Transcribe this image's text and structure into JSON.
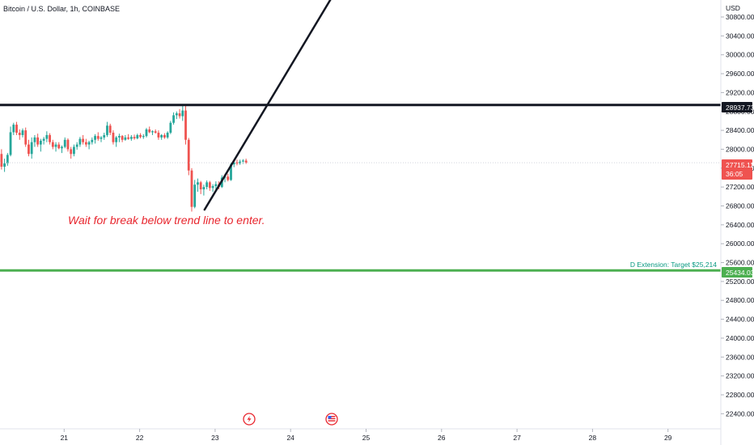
{
  "header": {
    "symbol_title": "Bitcoin / U.S. Dollar, 1h, COINBASE"
  },
  "price_axis": {
    "currency": "USD",
    "tick_labels": [
      "30800.00",
      "30400.00",
      "30000.00",
      "29600.00",
      "29200.00",
      "28800.00",
      "28400.00",
      "28000.00",
      "27600.00",
      "27200.00",
      "26800.00",
      "26400.00",
      "26000.00",
      "25600.00",
      "25200.00",
      "24800.00",
      "24400.00",
      "24000.00",
      "23600.00",
      "23200.00",
      "22800.00",
      "22400.00"
    ]
  },
  "time_axis": {
    "tick_labels": [
      "21",
      "22",
      "23",
      "24",
      "25",
      "26",
      "27",
      "28",
      "29"
    ]
  },
  "badges": {
    "resistance_price": "28937.73",
    "last_price": "27715.11",
    "countdown": "36:05",
    "support_price": "25434.03"
  },
  "annotations": {
    "entry_note": "Wait for break below trend line to enter.",
    "extension_note": "D Extension: Target $25,214"
  },
  "colors": {
    "up": "#26a69a",
    "down": "#ef5350",
    "resistance_line": "#131722",
    "support_line": "#4caf50",
    "trend_line": "#131722",
    "note": "#e8262e",
    "extension_text": "#089981",
    "last_price_badge": "#ef5350"
  },
  "icons": [
    "lightning-event-icon",
    "us-flag-event-icon"
  ],
  "chart_data": {
    "type": "candlestick",
    "title": "Bitcoin / U.S. Dollar, 1h, COINBASE",
    "ylabel": "USD",
    "ylim": [
      22080,
      31160
    ],
    "xlim": [
      20.15,
      29.7
    ],
    "grid": false,
    "horizontal_lines": [
      {
        "price": 28937.73,
        "style": "solid-thick"
      },
      {
        "price": 25434.03,
        "style": "solid-thick"
      }
    ],
    "trend_line": {
      "from": {
        "x": 22.86,
        "y": 26720
      },
      "to": {
        "x": 24.54,
        "y": 31200
      }
    },
    "last_price": 27715.11,
    "candles": [
      {
        "x": 20.17,
        "o": 27900,
        "h": 28000,
        "l": 27570,
        "c": 27630
      },
      {
        "x": 20.21,
        "o": 27630,
        "h": 27800,
        "l": 27520,
        "c": 27700
      },
      {
        "x": 20.25,
        "o": 27700,
        "h": 27920,
        "l": 27650,
        "c": 27880
      },
      {
        "x": 20.29,
        "o": 27880,
        "h": 28480,
        "l": 27850,
        "c": 28360
      },
      {
        "x": 20.33,
        "o": 28360,
        "h": 28560,
        "l": 28300,
        "c": 28520
      },
      {
        "x": 20.37,
        "o": 28520,
        "h": 28580,
        "l": 28300,
        "c": 28350
      },
      {
        "x": 20.41,
        "o": 28350,
        "h": 28420,
        "l": 28200,
        "c": 28300
      },
      {
        "x": 20.45,
        "o": 28300,
        "h": 28440,
        "l": 28250,
        "c": 28400
      },
      {
        "x": 20.49,
        "o": 28400,
        "h": 28460,
        "l": 28050,
        "c": 28100
      },
      {
        "x": 20.53,
        "o": 28100,
        "h": 28200,
        "l": 27850,
        "c": 27900
      },
      {
        "x": 20.57,
        "o": 27900,
        "h": 28250,
        "l": 27800,
        "c": 28150
      },
      {
        "x": 20.61,
        "o": 28150,
        "h": 28300,
        "l": 28050,
        "c": 28250
      },
      {
        "x": 20.65,
        "o": 28250,
        "h": 28330,
        "l": 28050,
        "c": 28100
      },
      {
        "x": 20.69,
        "o": 28100,
        "h": 28220,
        "l": 27950,
        "c": 28180
      },
      {
        "x": 20.73,
        "o": 28180,
        "h": 28260,
        "l": 28100,
        "c": 28220
      },
      {
        "x": 20.77,
        "o": 28220,
        "h": 28380,
        "l": 28150,
        "c": 28300
      },
      {
        "x": 20.81,
        "o": 28300,
        "h": 28340,
        "l": 28100,
        "c": 28150
      },
      {
        "x": 20.85,
        "o": 28150,
        "h": 28200,
        "l": 28000,
        "c": 28050
      },
      {
        "x": 20.89,
        "o": 28050,
        "h": 28150,
        "l": 27950,
        "c": 28100
      },
      {
        "x": 20.93,
        "o": 28100,
        "h": 28150,
        "l": 28000,
        "c": 28020
      },
      {
        "x": 20.97,
        "o": 28020,
        "h": 28080,
        "l": 27920,
        "c": 28050
      },
      {
        "x": 21.01,
        "o": 28050,
        "h": 28250,
        "l": 28020,
        "c": 28200
      },
      {
        "x": 21.05,
        "o": 28200,
        "h": 28230,
        "l": 27950,
        "c": 28000
      },
      {
        "x": 21.09,
        "o": 28000,
        "h": 28050,
        "l": 27800,
        "c": 27900
      },
      {
        "x": 21.13,
        "o": 27900,
        "h": 28100,
        "l": 27850,
        "c": 28050
      },
      {
        "x": 21.17,
        "o": 28050,
        "h": 28150,
        "l": 27990,
        "c": 28100
      },
      {
        "x": 21.21,
        "o": 28100,
        "h": 28260,
        "l": 28050,
        "c": 28220
      },
      {
        "x": 21.25,
        "o": 28220,
        "h": 28300,
        "l": 28100,
        "c": 28150
      },
      {
        "x": 21.29,
        "o": 28150,
        "h": 28220,
        "l": 28050,
        "c": 28100
      },
      {
        "x": 21.33,
        "o": 28100,
        "h": 28180,
        "l": 28000,
        "c": 28150
      },
      {
        "x": 21.37,
        "o": 28150,
        "h": 28250,
        "l": 28100,
        "c": 28200
      },
      {
        "x": 21.41,
        "o": 28200,
        "h": 28320,
        "l": 28120,
        "c": 28280
      },
      {
        "x": 21.45,
        "o": 28280,
        "h": 28360,
        "l": 28180,
        "c": 28220
      },
      {
        "x": 21.49,
        "o": 28220,
        "h": 28280,
        "l": 28150,
        "c": 28250
      },
      {
        "x": 21.53,
        "o": 28250,
        "h": 28350,
        "l": 28200,
        "c": 28300
      },
      {
        "x": 21.57,
        "o": 28300,
        "h": 28580,
        "l": 28260,
        "c": 28500
      },
      {
        "x": 21.61,
        "o": 28500,
        "h": 28540,
        "l": 28300,
        "c": 28350
      },
      {
        "x": 21.65,
        "o": 28350,
        "h": 28400,
        "l": 28100,
        "c": 28150
      },
      {
        "x": 21.69,
        "o": 28150,
        "h": 28280,
        "l": 28050,
        "c": 28250
      },
      {
        "x": 21.73,
        "o": 28250,
        "h": 28330,
        "l": 28150,
        "c": 28280
      },
      {
        "x": 21.77,
        "o": 28280,
        "h": 28300,
        "l": 28150,
        "c": 28200
      },
      {
        "x": 21.81,
        "o": 28200,
        "h": 28300,
        "l": 28180,
        "c": 28250
      },
      {
        "x": 21.85,
        "o": 28250,
        "h": 28320,
        "l": 28200,
        "c": 28220
      },
      {
        "x": 21.89,
        "o": 28220,
        "h": 28300,
        "l": 28180,
        "c": 28260
      },
      {
        "x": 21.93,
        "o": 28260,
        "h": 28310,
        "l": 28200,
        "c": 28230
      },
      {
        "x": 21.97,
        "o": 28230,
        "h": 28330,
        "l": 28210,
        "c": 28300
      },
      {
        "x": 22.01,
        "o": 28300,
        "h": 28340,
        "l": 28230,
        "c": 28260
      },
      {
        "x": 22.05,
        "o": 28260,
        "h": 28320,
        "l": 28220,
        "c": 28280
      },
      {
        "x": 22.09,
        "o": 28280,
        "h": 28450,
        "l": 28250,
        "c": 28420
      },
      {
        "x": 22.13,
        "o": 28420,
        "h": 28480,
        "l": 28340,
        "c": 28360
      },
      {
        "x": 22.17,
        "o": 28360,
        "h": 28400,
        "l": 28300,
        "c": 28380
      },
      {
        "x": 22.21,
        "o": 28380,
        "h": 28420,
        "l": 28330,
        "c": 28350
      },
      {
        "x": 22.25,
        "o": 28350,
        "h": 28400,
        "l": 28200,
        "c": 28250
      },
      {
        "x": 22.29,
        "o": 28250,
        "h": 28320,
        "l": 28200,
        "c": 28300
      },
      {
        "x": 22.33,
        "o": 28300,
        "h": 28340,
        "l": 28220,
        "c": 28250
      },
      {
        "x": 22.37,
        "o": 28250,
        "h": 28380,
        "l": 28220,
        "c": 28350
      },
      {
        "x": 22.41,
        "o": 28350,
        "h": 28600,
        "l": 28320,
        "c": 28560
      },
      {
        "x": 22.45,
        "o": 28560,
        "h": 28780,
        "l": 28520,
        "c": 28720
      },
      {
        "x": 22.49,
        "o": 28720,
        "h": 28800,
        "l": 28640,
        "c": 28760
      },
      {
        "x": 22.53,
        "o": 28760,
        "h": 28850,
        "l": 28650,
        "c": 28700
      },
      {
        "x": 22.57,
        "o": 28700,
        "h": 28940,
        "l": 28600,
        "c": 28820
      },
      {
        "x": 22.61,
        "o": 28820,
        "h": 28940,
        "l": 28100,
        "c": 28200
      },
      {
        "x": 22.65,
        "o": 28200,
        "h": 28240,
        "l": 27450,
        "c": 27550
      },
      {
        "x": 22.69,
        "o": 27550,
        "h": 27600,
        "l": 26680,
        "c": 26780
      },
      {
        "x": 22.73,
        "o": 26780,
        "h": 27350,
        "l": 26750,
        "c": 27250
      },
      {
        "x": 22.77,
        "o": 27250,
        "h": 27380,
        "l": 27100,
        "c": 27300
      },
      {
        "x": 22.81,
        "o": 27300,
        "h": 27330,
        "l": 27050,
        "c": 27150
      },
      {
        "x": 22.85,
        "o": 27150,
        "h": 27250,
        "l": 27020,
        "c": 27200
      },
      {
        "x": 22.89,
        "o": 27200,
        "h": 27340,
        "l": 27150,
        "c": 27300
      },
      {
        "x": 22.93,
        "o": 27300,
        "h": 27330,
        "l": 27120,
        "c": 27180
      },
      {
        "x": 22.97,
        "o": 27180,
        "h": 27260,
        "l": 27100,
        "c": 27220
      },
      {
        "x": 23.01,
        "o": 27220,
        "h": 27320,
        "l": 27150,
        "c": 27260
      },
      {
        "x": 23.05,
        "o": 27260,
        "h": 27320,
        "l": 27150,
        "c": 27200
      },
      {
        "x": 23.09,
        "o": 27200,
        "h": 27450,
        "l": 27180,
        "c": 27400
      },
      {
        "x": 23.13,
        "o": 27400,
        "h": 27480,
        "l": 27300,
        "c": 27420
      },
      {
        "x": 23.17,
        "o": 27420,
        "h": 27480,
        "l": 27320,
        "c": 27350
      },
      {
        "x": 23.21,
        "o": 27350,
        "h": 27720,
        "l": 27330,
        "c": 27680
      },
      {
        "x": 23.25,
        "o": 27680,
        "h": 27760,
        "l": 27620,
        "c": 27720
      },
      {
        "x": 23.29,
        "o": 27720,
        "h": 27780,
        "l": 27660,
        "c": 27700
      },
      {
        "x": 23.33,
        "o": 27700,
        "h": 27780,
        "l": 27670,
        "c": 27740
      },
      {
        "x": 23.37,
        "o": 27740,
        "h": 27790,
        "l": 27690,
        "c": 27760
      },
      {
        "x": 23.41,
        "o": 27760,
        "h": 27800,
        "l": 27690,
        "c": 27715.11
      }
    ]
  }
}
